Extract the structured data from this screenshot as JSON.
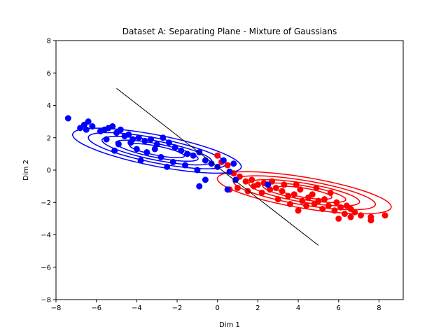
{
  "chart_data": {
    "type": "scatter",
    "title": "Dataset A: Separating Plane - Mixture of Gaussians",
    "xlabel": "Dim 1",
    "ylabel": "Dim 2",
    "xlim": [
      -8,
      9.2
    ],
    "ylim": [
      -8,
      8
    ],
    "xticks": [
      -8,
      -6,
      -4,
      -2,
      0,
      2,
      4,
      6,
      8
    ],
    "yticks": [
      -8,
      -6,
      -4,
      -2,
      0,
      2,
      4,
      6,
      8
    ],
    "grid": false,
    "legend": "none",
    "series": [
      {
        "color": "#0000ff",
        "center": [
          -3.0,
          1.2
        ],
        "contours": [
          {
            "center": [
              -3.0,
              1.2
            ],
            "semi_major": 4.3,
            "semi_minor": 0.95,
            "angle_deg": -14
          },
          {
            "center": [
              -3.0,
              1.2
            ],
            "semi_major": 3.5,
            "semi_minor": 0.75,
            "angle_deg": -14
          },
          {
            "center": [
              -3.0,
              1.2
            ],
            "semi_major": 2.8,
            "semi_minor": 0.58,
            "angle_deg": -14
          },
          {
            "center": [
              -3.0,
              1.2
            ],
            "semi_major": 2.1,
            "semi_minor": 0.42,
            "angle_deg": -14
          },
          {
            "center": [
              -3.0,
              1.2
            ],
            "semi_major": 1.4,
            "semi_minor": 0.28,
            "angle_deg": -14
          }
        ],
        "points": [
          [
            -7.4,
            3.2
          ],
          [
            -6.8,
            2.6
          ],
          [
            -6.6,
            2.8
          ],
          [
            -6.4,
            3.0
          ],
          [
            -6.5,
            2.5
          ],
          [
            -6.2,
            2.7
          ],
          [
            -5.8,
            2.4
          ],
          [
            -5.6,
            2.5
          ],
          [
            -5.4,
            2.6
          ],
          [
            -5.2,
            2.7
          ],
          [
            -5.0,
            2.3
          ],
          [
            -4.8,
            2.5
          ],
          [
            -4.6,
            2.1
          ],
          [
            -4.4,
            2.2
          ],
          [
            -4.2,
            1.9
          ],
          [
            -3.9,
            2.0
          ],
          [
            -3.6,
            1.8
          ],
          [
            -3.3,
            1.9
          ],
          [
            -3.0,
            1.6
          ],
          [
            -2.7,
            2.0
          ],
          [
            -2.4,
            1.7
          ],
          [
            -2.1,
            1.4
          ],
          [
            -1.8,
            1.2
          ],
          [
            -1.5,
            1.0
          ],
          [
            -1.2,
            0.9
          ],
          [
            -0.9,
            1.1
          ],
          [
            -0.6,
            0.6
          ],
          [
            -0.3,
            0.4
          ],
          [
            0.0,
            0.2
          ],
          [
            0.3,
            0.6
          ],
          [
            0.6,
            -0.1
          ],
          [
            0.8,
            0.4
          ],
          [
            -0.6,
            -0.6
          ],
          [
            -0.9,
            -1.0
          ],
          [
            0.9,
            -0.6
          ],
          [
            0.5,
            -1.2
          ],
          [
            2.5,
            -0.9
          ],
          [
            -5.5,
            1.9
          ],
          [
            -4.9,
            1.6
          ],
          [
            -4.0,
            1.3
          ],
          [
            -3.5,
            1.1
          ],
          [
            -2.8,
            0.8
          ],
          [
            -2.2,
            0.5
          ],
          [
            -1.6,
            0.3
          ],
          [
            -5.1,
            1.2
          ],
          [
            -3.8,
            0.6
          ],
          [
            -2.5,
            0.2
          ],
          [
            -1.0,
            0.0
          ],
          [
            -4.3,
            1.7
          ],
          [
            -3.1,
            1.3
          ]
        ]
      },
      {
        "color": "#ff0000",
        "center": [
          4.3,
          -1.4
        ],
        "contours": [
          {
            "center": [
              4.3,
              -1.4
            ],
            "semi_major": 4.4,
            "semi_minor": 0.95,
            "angle_deg": -12
          },
          {
            "center": [
              4.3,
              -1.4
            ],
            "semi_major": 3.6,
            "semi_minor": 0.75,
            "angle_deg": -12
          },
          {
            "center": [
              4.3,
              -1.4
            ],
            "semi_major": 2.8,
            "semi_minor": 0.58,
            "angle_deg": -12
          },
          {
            "center": [
              4.3,
              -1.4
            ],
            "semi_major": 2.1,
            "semi_minor": 0.42,
            "angle_deg": -12
          },
          {
            "center": [
              4.3,
              -1.4
            ],
            "semi_major": 1.4,
            "semi_minor": 0.28,
            "angle_deg": -12
          }
        ],
        "points": [
          [
            8.3,
            -2.8
          ],
          [
            7.6,
            -2.9
          ],
          [
            7.6,
            -3.1
          ],
          [
            7.1,
            -2.8
          ],
          [
            6.8,
            -2.6
          ],
          [
            6.6,
            -2.9
          ],
          [
            6.3,
            -2.7
          ],
          [
            6.0,
            -3.0
          ],
          [
            6.1,
            -2.3
          ],
          [
            5.8,
            -2.5
          ],
          [
            5.5,
            -2.2
          ],
          [
            5.2,
            -2.4
          ],
          [
            5.0,
            -1.9
          ],
          [
            4.8,
            -2.1
          ],
          [
            4.5,
            -1.7
          ],
          [
            4.2,
            -1.9
          ],
          [
            4.0,
            -2.5
          ],
          [
            3.8,
            -1.5
          ],
          [
            3.5,
            -1.6
          ],
          [
            3.2,
            -1.3
          ],
          [
            2.9,
            -1.1
          ],
          [
            2.6,
            -1.2
          ],
          [
            2.3,
            -0.8
          ],
          [
            2.0,
            -0.9
          ],
          [
            1.7,
            -0.6
          ],
          [
            1.4,
            -0.7
          ],
          [
            1.1,
            -0.4
          ],
          [
            0.8,
            -0.2
          ],
          [
            0.5,
            0.3
          ],
          [
            0.2,
            0.5
          ],
          [
            0.0,
            0.9
          ],
          [
            0.6,
            -1.2
          ],
          [
            1.0,
            -1.1
          ],
          [
            1.5,
            -1.3
          ],
          [
            2.7,
            -0.7
          ],
          [
            3.3,
            -0.9
          ],
          [
            4.1,
            -1.2
          ],
          [
            4.7,
            -1.5
          ],
          [
            5.3,
            -1.8
          ],
          [
            5.9,
            -2.0
          ],
          [
            6.4,
            -2.2
          ],
          [
            3.0,
            -1.8
          ],
          [
            3.6,
            -2.1
          ],
          [
            4.4,
            -2.2
          ],
          [
            2.2,
            -1.4
          ],
          [
            1.8,
            -1.0
          ],
          [
            5.6,
            -1.4
          ],
          [
            4.9,
            -1.1
          ],
          [
            3.9,
            -0.9
          ],
          [
            6.6,
            -2.4
          ]
        ]
      }
    ],
    "separating_line": {
      "x": [
        -5.0,
        5.0
      ],
      "y": [
        5.05,
        -4.65
      ],
      "color": "#000000"
    }
  }
}
